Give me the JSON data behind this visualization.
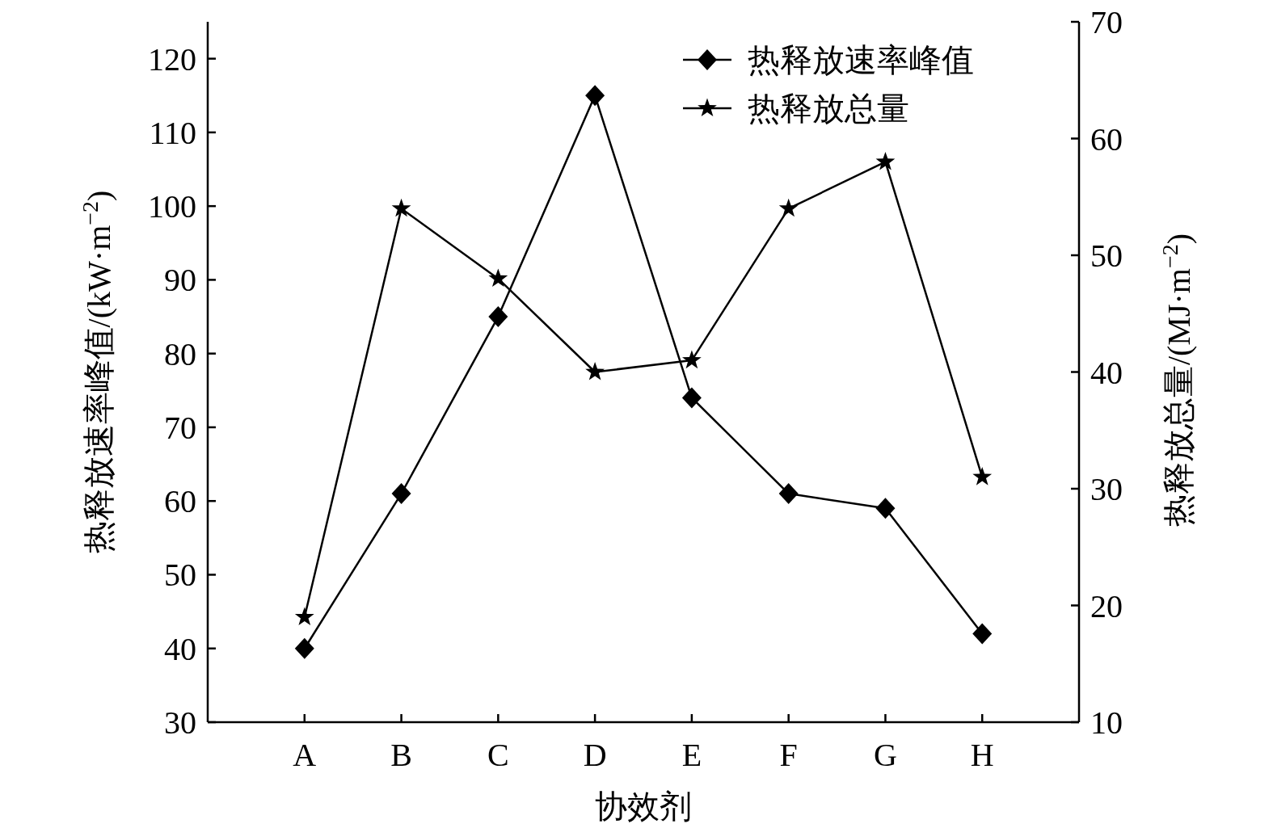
{
  "chart_data": {
    "type": "line",
    "xlabel": "协效剂",
    "ylabel": "热释放速率峰值/(kW·m$^{−2}$)",
    "y2label": "热释放总量/(MJ·m$^{−2}$)",
    "categories": [
      "A",
      "B",
      "C",
      "D",
      "E",
      "F",
      "G",
      "H"
    ],
    "series": [
      {
        "name": "热释放速率峰值",
        "color": "#000000",
        "marker": "diamond",
        "values": [
          40,
          61,
          85,
          115,
          74,
          61,
          59,
          42
        ]
      },
      {
        "name": "热释放总量",
        "color": "#000000",
        "marker": "star",
        "axis": "y2",
        "values": [
          19,
          54,
          48,
          40,
          41,
          54,
          58,
          31
        ]
      }
    ],
    "ylim": [
      30,
      125
    ],
    "yticks": [
      30,
      40,
      50,
      60,
      70,
      80,
      90,
      100,
      110,
      120
    ],
    "y2lim": [
      10,
      70
    ],
    "y2ticks": [
      10,
      20,
      30,
      40,
      50,
      60,
      70
    ],
    "legend": "top right",
    "grid": false,
    "line_style": "solid"
  }
}
